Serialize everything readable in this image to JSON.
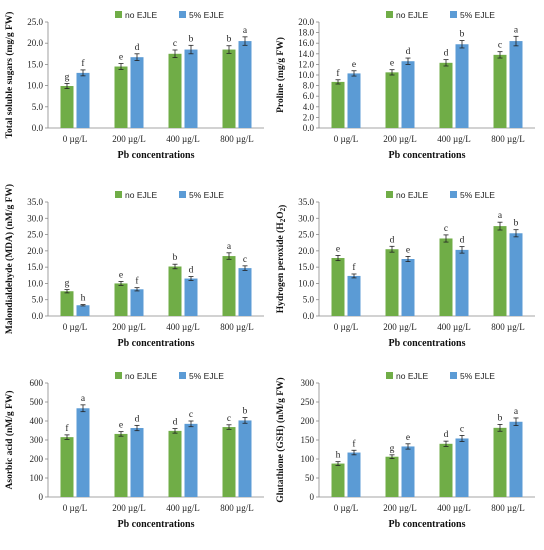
{
  "colors": {
    "no_ejle": "#70AD47",
    "ejle_5": "#5B9BD5",
    "axis": "#888888",
    "error": "#222222"
  },
  "chart_data": [
    {
      "type": "bar",
      "categories": [
        "0 µg/L",
        "200 µg/L",
        "400 µg/L",
        "800 µg/L"
      ],
      "series": [
        {
          "name": "no EJLE",
          "values": [
            9.9,
            14.5,
            17.5,
            18.5
          ],
          "errors": [
            0.6,
            0.7,
            0.9,
            0.9
          ],
          "letters": [
            "g",
            "e",
            "c",
            "b"
          ]
        },
        {
          "name": "5% EJLE",
          "values": [
            13.0,
            16.7,
            18.5,
            20.5
          ],
          "errors": [
            0.7,
            0.8,
            1.0,
            1.0
          ],
          "letters": [
            "f",
            "d",
            "b",
            "a"
          ]
        }
      ],
      "ylabel": "Total soluble sugars (mg/g FW)",
      "xlabel": "Pb concentrations",
      "ylim": [
        0,
        25
      ],
      "yticks": [
        "0.0",
        "5.0",
        "10.0",
        "15.0",
        "20.0",
        "25.0"
      ],
      "legend": "top"
    },
    {
      "type": "bar",
      "categories": [
        "0 µg/L",
        "200 µg/L",
        "400 µg/L",
        "800 µg/L"
      ],
      "series": [
        {
          "name": "no EJLE",
          "values": [
            8.7,
            10.5,
            12.3,
            13.8
          ],
          "errors": [
            0.4,
            0.5,
            0.6,
            0.6
          ],
          "letters": [
            "f",
            "e",
            "d",
            "c"
          ]
        },
        {
          "name": "5% EJLE",
          "values": [
            10.3,
            12.6,
            15.8,
            16.4
          ],
          "errors": [
            0.5,
            0.6,
            0.7,
            0.9
          ],
          "letters": [
            "e",
            "d",
            "b",
            "a"
          ]
        }
      ],
      "ylabel": "Proline (mg/g FW)",
      "xlabel": "Pb concentrations",
      "ylim": [
        0,
        20
      ],
      "yticks": [
        "0.0",
        "2.0",
        "4.0",
        "6.0",
        "8.0",
        "10.0",
        "12.0",
        "14.0",
        "16.0",
        "18.0",
        "20.0"
      ],
      "legend": "top"
    },
    {
      "type": "bar",
      "categories": [
        "0 µg/L",
        "200 µg/L",
        "400 µg/L",
        "800 µg/L"
      ],
      "series": [
        {
          "name": "no EJLE",
          "values": [
            7.6,
            10.0,
            15.2,
            18.4
          ],
          "errors": [
            0.5,
            0.6,
            0.7,
            1.0
          ],
          "letters": [
            "g",
            "e",
            "b",
            "a"
          ]
        },
        {
          "name": "5% EJLE",
          "values": [
            3.3,
            8.2,
            11.5,
            14.7
          ],
          "errors": [
            0.2,
            0.5,
            0.6,
            0.7
          ],
          "letters": [
            "h",
            "f",
            "d",
            "c"
          ]
        }
      ],
      "ylabel": "Malondialdehyde (MDA) (nM/g FW)",
      "xlabel": "Pb concentrations",
      "ylim": [
        0,
        35
      ],
      "yticks": [
        "0.0",
        "5.0",
        "10.0",
        "15.0",
        "20.0",
        "25.0",
        "30.0",
        "35.0"
      ],
      "legend": "top"
    },
    {
      "type": "bar",
      "categories": [
        "0 µg/L",
        "200 µg/L",
        "400 µg/L",
        "800 µg/L"
      ],
      "series": [
        {
          "name": "no EJLE",
          "values": [
            17.8,
            20.5,
            23.8,
            27.6
          ],
          "errors": [
            0.8,
            0.9,
            1.1,
            1.2
          ],
          "letters": [
            "e",
            "d",
            "c",
            "a"
          ]
        },
        {
          "name": "5% EJLE",
          "values": [
            12.3,
            17.5,
            20.3,
            25.4
          ],
          "errors": [
            0.6,
            0.8,
            1.0,
            1.1
          ],
          "letters": [
            "f",
            "e",
            "d",
            "b"
          ]
        }
      ],
      "ylabel": "Hydrogen peroxide (H2O2)",
      "xlabel": "Pb concentrations",
      "ylim": [
        0,
        35
      ],
      "yticks": [
        "0.0",
        "5.0",
        "10.0",
        "15.0",
        "20.0",
        "25.0",
        "30.0",
        "35.0"
      ],
      "legend": "top"
    },
    {
      "type": "bar",
      "categories": [
        "0 µg/L",
        "200 µg/L",
        "400 µg/L",
        "800 µg/L"
      ],
      "series": [
        {
          "name": "no EJLE",
          "values": [
            315,
            332,
            348,
            368
          ],
          "errors": [
            12,
            12,
            12,
            12
          ],
          "letters": [
            "f",
            "e",
            "d",
            "c"
          ]
        },
        {
          "name": "5% EJLE",
          "values": [
            467,
            363,
            385,
            403
          ],
          "errors": [
            18,
            14,
            15,
            15
          ],
          "letters": [
            "a",
            "d",
            "c",
            "b"
          ]
        }
      ],
      "ylabel": "Asorbic acid (nM/g FW)",
      "xlabel": "Pb concentrations",
      "ylim": [
        0,
        600
      ],
      "yticks": [
        "0",
        "100",
        "200",
        "300",
        "400",
        "500",
        "600"
      ],
      "legend": "top"
    },
    {
      "type": "bar",
      "categories": [
        "0 µg/L",
        "200 µg/L",
        "400 µg/L",
        "800 µg/L"
      ],
      "series": [
        {
          "name": "no EJLE",
          "values": [
            88,
            106,
            140,
            182
          ],
          "errors": [
            5,
            5,
            7,
            9
          ],
          "letters": [
            "h",
            "g",
            "d",
            "b"
          ]
        },
        {
          "name": "5% EJLE",
          "values": [
            117,
            133,
            154,
            198
          ],
          "errors": [
            6,
            7,
            8,
            10
          ],
          "letters": [
            "f",
            "e",
            "c",
            "a"
          ]
        }
      ],
      "ylabel": "Glutathione (GSH) (nM/g FW)",
      "xlabel": "Pb concentrations",
      "ylim": [
        0,
        300
      ],
      "yticks": [
        "0",
        "50",
        "100",
        "150",
        "200",
        "250",
        "300"
      ],
      "legend": "top"
    }
  ]
}
